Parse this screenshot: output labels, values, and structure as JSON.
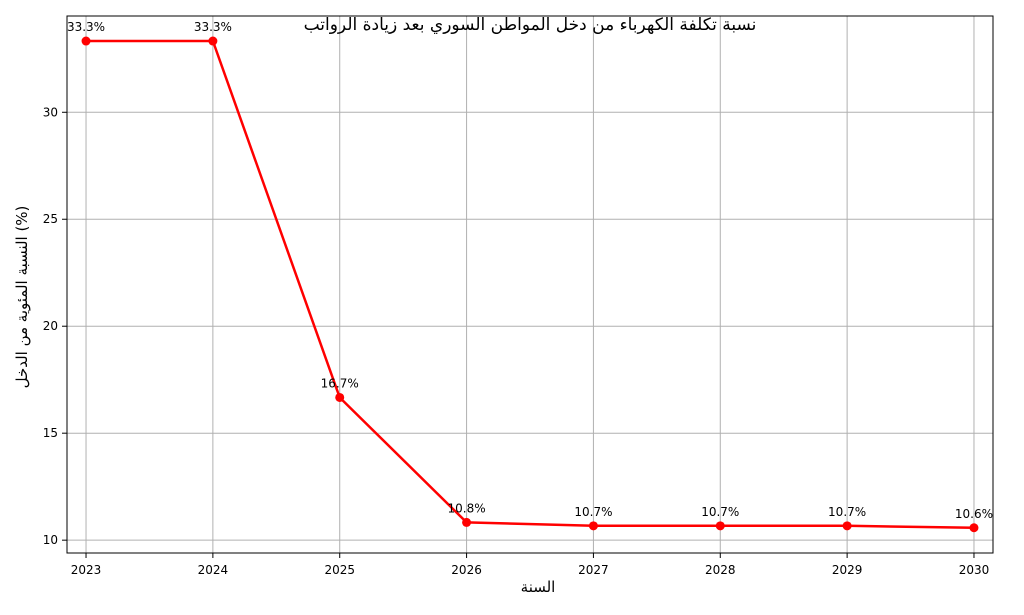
{
  "chart_data": {
    "type": "line",
    "title": "نسبة تكلفة الكهرباء من دخل المواطن السوري بعد زيادة الرواتب",
    "xlabel": "السنة",
    "ylabel": "النسبة المئوية من الدخل (%)",
    "x": [
      2023,
      2024,
      2025,
      2026,
      2027,
      2028,
      2029,
      2030
    ],
    "series": [
      {
        "values": [
          33.33,
          33.33,
          16.67,
          10.83,
          10.67,
          10.67,
          10.67,
          10.58
        ],
        "labels": [
          "33.3%",
          "33.3%",
          "16.7%",
          "10.8%",
          "10.7%",
          "10.7%",
          "10.7%",
          "10.6%"
        ],
        "color": "#ff0000",
        "marker": "circle"
      }
    ],
    "xlim": [
      2022.85,
      2030.15
    ],
    "ylim": [
      9.4,
      34.5
    ],
    "yticks": [
      10,
      15,
      20,
      25,
      30
    ],
    "xticks": [
      2023,
      2024,
      2025,
      2026,
      2027,
      2028,
      2029,
      2030
    ],
    "grid": true,
    "legend": "none"
  }
}
